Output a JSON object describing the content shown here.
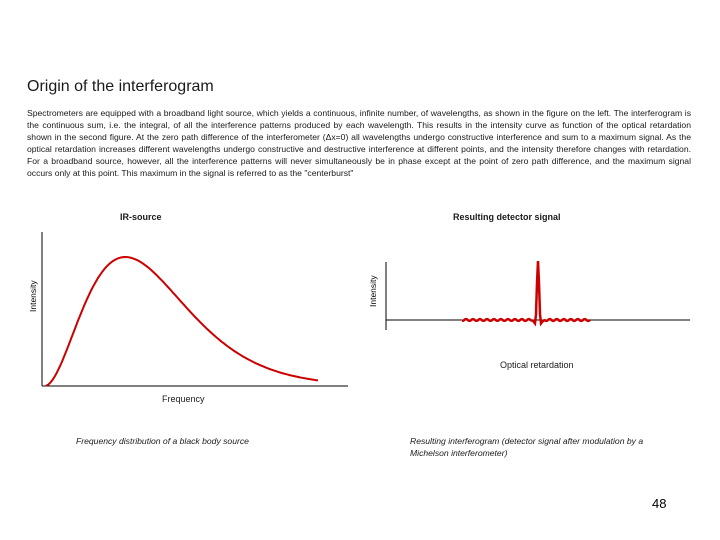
{
  "slide": {
    "title": "Origin of the interferogram",
    "paragraph": "Spectrometers are equipped with a broadband light source, which yields a continuous, infinite number, of wavelengths, as shown in the figure on the left. The interferogram is the continuous sum, i.e. the integral, of all the interference patterns produced by each wavelength. This results in the intensity curve as function of the optical retardation shown in the second figure. At the zero path difference of the interferometer (Δx=0) all wavelengths undergo constructive interference and sum to a maximum signal. As the optical retardation increases different wavelengths undergo constructive and destructive interference at different points, and the intensity therefore changes with retardation. For a broadband source, however, all the interference patterns will never simultaneously be in phase except at the point of zero path difference, and the maximum signal occurs only at this point. This maximum in the signal is referred to as the \"centerburst\"",
    "page_number": "48"
  },
  "left_figure": {
    "title": "IR-source",
    "ylabel": "Intensity",
    "xlabel": "Frequency",
    "caption": "Frequency distribution of a black body source",
    "curve_color": "#cc0000"
  },
  "right_figure": {
    "title": "Resulting detector signal",
    "ylabel": "Intensity",
    "xlabel": "Optical retardation",
    "caption": "Resulting interferogram (detector signal after modulation by a Michelson interferometer)",
    "curve_color": "#cc0000"
  }
}
